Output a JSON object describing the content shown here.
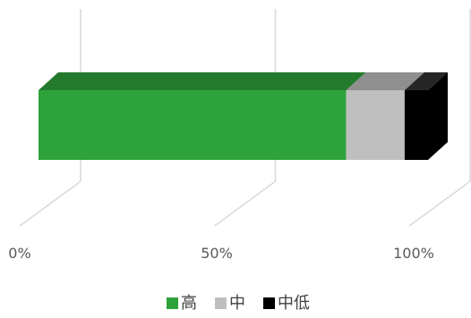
{
  "chart_data": {
    "type": "bar",
    "orientation": "horizontal",
    "stacked": "percent",
    "three_d": true,
    "categories": [
      ""
    ],
    "series": [
      {
        "name": "高",
        "values": [
          79
        ],
        "color": "#2ea33c"
      },
      {
        "name": "中",
        "values": [
          15
        ],
        "color": "#bfbfbf"
      },
      {
        "name": "中低",
        "values": [
          6
        ],
        "color": "#000000"
      }
    ],
    "x_ticks": [
      "0%",
      "50%",
      "100%"
    ],
    "xlim": [
      0,
      100
    ],
    "grid": true,
    "legend": "bottom",
    "title": "",
    "xlabel": "",
    "ylabel": ""
  }
}
